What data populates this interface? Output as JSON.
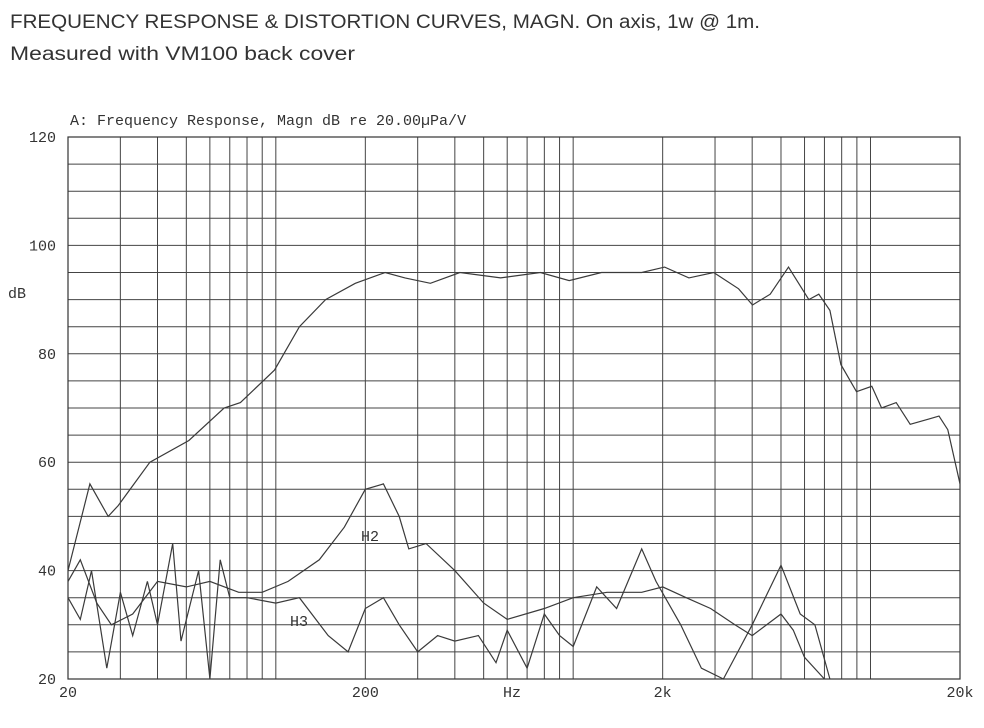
{
  "chart_data": {
    "type": "line",
    "title": "FREQUENCY RESPONSE & DISTORTION CURVES, MAGN. On axis, 1w @ 1m.",
    "subtitle": "Measured with VM100 back cover",
    "plot_title": "A: Frequency Response, Magn dB re 20.00µPa/V",
    "x_label": "Hz",
    "y_label": "dB",
    "xlog": true,
    "grid": true,
    "xlim": [
      20,
      20000
    ],
    "ylim": [
      20,
      120
    ],
    "xticks": [
      {
        "value": 20,
        "label": "20"
      },
      {
        "value": 200,
        "label": "200"
      },
      {
        "value": 2000,
        "label": "2k"
      },
      {
        "value": 20000,
        "label": "20k"
      }
    ],
    "yticks": [
      20,
      40,
      60,
      80,
      100,
      120
    ],
    "xminorticks": [
      30,
      40,
      50,
      60,
      70,
      80,
      90,
      100,
      300,
      400,
      500,
      600,
      700,
      800,
      900,
      1000,
      3000,
      4000,
      5000,
      6000,
      7000,
      8000,
      9000,
      10000
    ],
    "yminorticks": [
      25,
      30,
      35,
      45,
      50,
      55,
      65,
      70,
      75,
      85,
      90,
      95,
      105,
      110,
      115
    ],
    "series": [
      {
        "name": "Frequency Response",
        "color": "#3a3a3a",
        "x": [
          20,
          23.7,
          27.3,
          29.5,
          37.7,
          51,
          67,
          76,
          99,
          120,
          147,
          185,
          233,
          272,
          331,
          416,
          570,
          776,
          970,
          1245,
          1700,
          2030,
          2450,
          2970,
          3600,
          4010,
          4600,
          5300,
          6200,
          6700,
          7300,
          7950,
          8970,
          10100,
          10900,
          12200,
          13600,
          15800,
          17000,
          18200,
          20000
        ],
        "values": [
          40,
          56,
          50,
          52,
          60,
          64,
          70,
          71,
          77,
          85,
          90,
          93,
          95,
          94,
          93,
          95,
          94,
          95,
          93.5,
          95,
          95,
          96,
          94,
          95,
          92,
          89,
          91,
          96,
          90,
          91,
          88,
          78,
          73,
          74,
          70,
          71,
          67,
          68,
          68.5,
          66,
          56
        ]
      },
      {
        "name": "H2",
        "color": "#3a3a3a",
        "x": [
          20,
          22,
          25,
          28,
          33,
          40,
          50,
          60,
          75,
          90,
          110,
          140,
          170,
          200,
          230,
          260,
          280,
          320,
          400,
          500,
          600,
          800,
          1000,
          1300,
          1700,
          2000,
          2400,
          2900,
          3500,
          4000,
          5000,
          5500,
          6000,
          7000
        ],
        "values": [
          38,
          42,
          34,
          30,
          32,
          38,
          37,
          38,
          36,
          36,
          38,
          42,
          48,
          55,
          56,
          50,
          44,
          45,
          40,
          34,
          31,
          33,
          35,
          36,
          36,
          37,
          35,
          33,
          30,
          28,
          32,
          29,
          24,
          20
        ]
      },
      {
        "name": "H3",
        "color": "#3a3a3a",
        "x": [
          20,
          22,
          24,
          27,
          30,
          33,
          37,
          40,
          45,
          48,
          55,
          60,
          65,
          70,
          80,
          100,
          120,
          150,
          175,
          200,
          230,
          260,
          300,
          350,
          400,
          480,
          550,
          600,
          700,
          800,
          900,
          1000,
          1200,
          1400,
          1700,
          1900,
          2300,
          2700,
          3200,
          4000,
          5000,
          5800,
          6500,
          7300
        ],
        "values": [
          35,
          31,
          40,
          22,
          36,
          28,
          38,
          30,
          45,
          27,
          40,
          20,
          42,
          35,
          35,
          34,
          35,
          28,
          25,
          33,
          35,
          30,
          25,
          28,
          27,
          28,
          23,
          29,
          22,
          32,
          28,
          26,
          37,
          33,
          44,
          38,
          30,
          22,
          20,
          30,
          41,
          32,
          30,
          20
        ]
      }
    ]
  }
}
